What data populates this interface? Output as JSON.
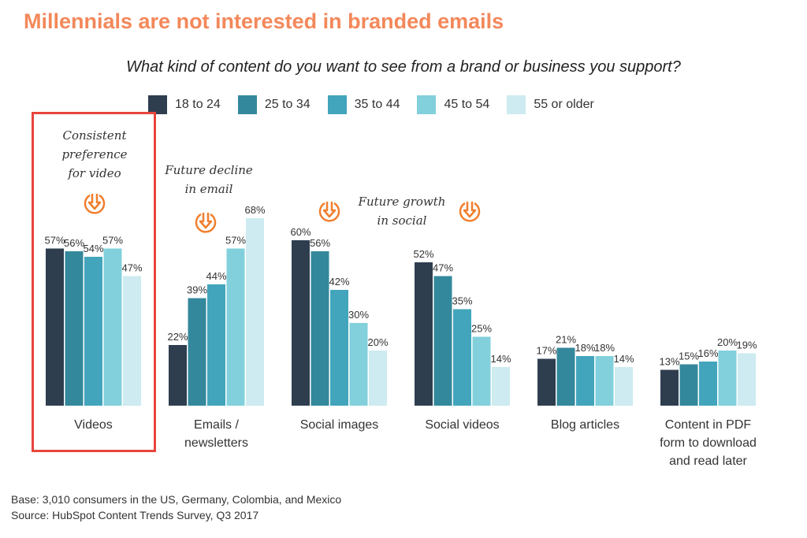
{
  "title": "Millennials are not interested in branded emails",
  "chart_data": {
    "type": "bar",
    "title": "What kind of content do you want to see from a brand or business you support?",
    "categories": [
      "Videos",
      "Emails / newsletters",
      "Social images",
      "Social videos",
      "Blog articles",
      "Content in PDF form to download and read later"
    ],
    "category_lines": [
      [
        "Videos"
      ],
      [
        "Emails /",
        "newsletters"
      ],
      [
        "Social images"
      ],
      [
        "Social videos"
      ],
      [
        "Blog articles"
      ],
      [
        "Content in PDF",
        "form to download",
        "and read later"
      ]
    ],
    "series": [
      {
        "name": "18 to 24",
        "color": "#2E3E4F",
        "values": [
          57,
          22,
          60,
          52,
          17,
          13
        ]
      },
      {
        "name": "25 to 34",
        "color": "#34889B",
        "values": [
          56,
          39,
          56,
          47,
          21,
          15
        ]
      },
      {
        "name": "35 to 44",
        "color": "#42A5BC",
        "values": [
          54,
          44,
          42,
          35,
          18,
          16
        ]
      },
      {
        "name": "45 to 54",
        "color": "#82D0DC",
        "values": [
          57,
          57,
          30,
          25,
          18,
          20
        ]
      },
      {
        "name": "55 or older",
        "color": "#CDEBF0",
        "values": [
          47,
          68,
          20,
          14,
          14,
          19
        ]
      }
    ],
    "value_suffix": "%",
    "ylim": [
      0,
      70
    ],
    "grid": false,
    "legend": "top",
    "highlight": {
      "category": "Videos",
      "color": "#E8453C"
    },
    "annotations": {
      "videos": [
        "Consistent",
        "preference",
        "for video"
      ],
      "email": [
        "Future decline",
        "in email"
      ],
      "social": [
        "Future growth",
        "in social"
      ]
    },
    "annotation_icon": "circle-arrow-down-icon",
    "annotation_color": "#F07F2E"
  },
  "footer": {
    "base": "Base: 3,010 consumers in the US, Germany, Colombia, and Mexico",
    "source": "Source: HubSpot Content Trends Survey, Q3 2017"
  }
}
